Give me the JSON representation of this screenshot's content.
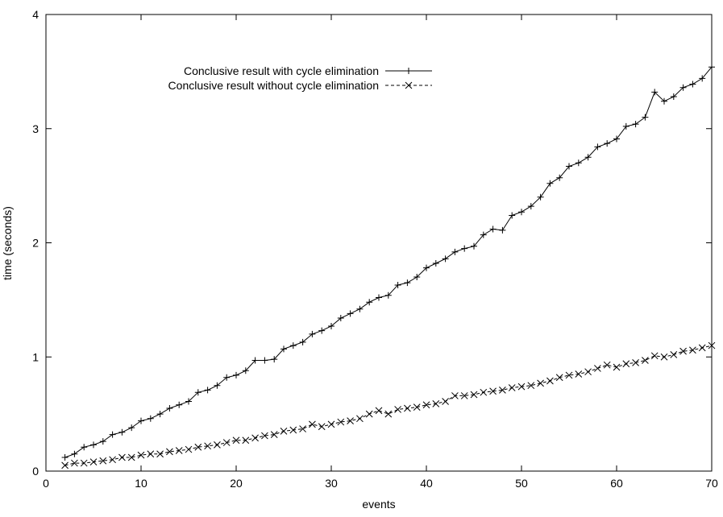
{
  "chart_data": {
    "type": "line",
    "title": "",
    "xlabel": "events",
    "ylabel": "time (seconds)",
    "xlim": [
      0,
      70
    ],
    "ylim": [
      0,
      4
    ],
    "x_ticks": [
      0,
      10,
      20,
      30,
      40,
      50,
      60,
      70
    ],
    "y_ticks": [
      0,
      1,
      2,
      3,
      4
    ],
    "grid": false,
    "legend_position": "top-right",
    "x": [
      2,
      3,
      4,
      5,
      6,
      7,
      8,
      9,
      10,
      11,
      12,
      13,
      14,
      15,
      16,
      17,
      18,
      19,
      20,
      21,
      22,
      23,
      24,
      25,
      26,
      27,
      28,
      29,
      30,
      31,
      32,
      33,
      34,
      35,
      36,
      37,
      38,
      39,
      40,
      41,
      42,
      43,
      44,
      45,
      46,
      47,
      48,
      49,
      50,
      51,
      52,
      53,
      54,
      55,
      56,
      57,
      58,
      59,
      60,
      61,
      62,
      63,
      64,
      65,
      66,
      67,
      68,
      69,
      70
    ],
    "series": [
      {
        "name": "Conclusive result with cycle elimination",
        "marker": "plus",
        "dash": "solid",
        "values": [
          0.12,
          0.15,
          0.21,
          0.23,
          0.26,
          0.32,
          0.34,
          0.38,
          0.44,
          0.46,
          0.5,
          0.55,
          0.58,
          0.61,
          0.69,
          0.71,
          0.75,
          0.82,
          0.84,
          0.88,
          0.97,
          0.97,
          0.98,
          1.07,
          1.1,
          1.13,
          1.2,
          1.23,
          1.27,
          1.34,
          1.38,
          1.42,
          1.48,
          1.52,
          1.54,
          1.63,
          1.65,
          1.7,
          1.78,
          1.82,
          1.86,
          1.92,
          1.95,
          1.97,
          2.07,
          2.12,
          2.11,
          2.24,
          2.27,
          2.32,
          2.4,
          2.52,
          2.57,
          2.67,
          2.7,
          2.75,
          2.84,
          2.87,
          2.91,
          3.02,
          3.04,
          3.1,
          3.32,
          3.24,
          3.28,
          3.36,
          3.39,
          3.44,
          3.54
        ]
      },
      {
        "name": "Conclusive result without cycle elimination",
        "marker": "cross",
        "dash": "dashed",
        "values": [
          0.05,
          0.07,
          0.07,
          0.08,
          0.09,
          0.1,
          0.12,
          0.12,
          0.14,
          0.15,
          0.15,
          0.17,
          0.18,
          0.19,
          0.21,
          0.22,
          0.23,
          0.25,
          0.27,
          0.27,
          0.29,
          0.31,
          0.32,
          0.35,
          0.36,
          0.37,
          0.41,
          0.39,
          0.41,
          0.43,
          0.44,
          0.46,
          0.5,
          0.53,
          0.5,
          0.54,
          0.55,
          0.56,
          0.58,
          0.59,
          0.61,
          0.66,
          0.66,
          0.67,
          0.69,
          0.7,
          0.71,
          0.73,
          0.74,
          0.75,
          0.77,
          0.79,
          0.82,
          0.84,
          0.85,
          0.87,
          0.9,
          0.93,
          0.91,
          0.94,
          0.95,
          0.97,
          1.01,
          1.0,
          1.02,
          1.05,
          1.06,
          1.08,
          1.1
        ]
      }
    ]
  }
}
